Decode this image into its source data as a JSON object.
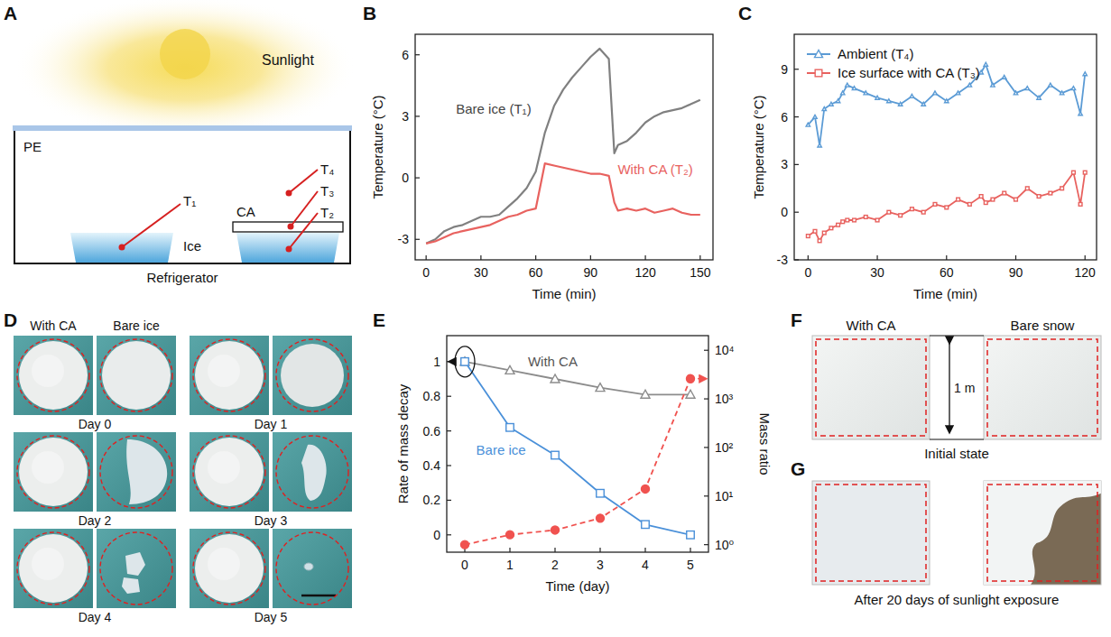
{
  "chart_data": [
    {
      "type": "line",
      "panel_label": "B",
      "x_label": "Time (min)",
      "y_label": "Temperature (°C)",
      "x": [
        0,
        5,
        10,
        15,
        20,
        25,
        30,
        35,
        40,
        45,
        50,
        55,
        60,
        65,
        70,
        75,
        80,
        85,
        90,
        95,
        100,
        103,
        105,
        110,
        115,
        120,
        125,
        130,
        135,
        140,
        145,
        150
      ],
      "xlim": [
        -6,
        157
      ],
      "xticks": [
        0,
        30,
        60,
        90,
        120,
        150
      ],
      "ylim": [
        -4,
        7
      ],
      "yticks": [
        -3,
        0,
        3,
        6
      ],
      "grid": false,
      "series": [
        {
          "name": "Bare ice (T₁)",
          "color": "#808080",
          "values": [
            -3.2,
            -3.0,
            -2.6,
            -2.4,
            -2.3,
            -2.1,
            -1.9,
            -1.9,
            -1.8,
            -1.4,
            -1.0,
            -0.5,
            0.3,
            2.2,
            3.5,
            4.3,
            4.9,
            5.4,
            5.9,
            6.3,
            5.8,
            1.2,
            1.6,
            1.8,
            2.2,
            2.7,
            3.0,
            3.2,
            3.3,
            3.4,
            3.6,
            3.8
          ]
        },
        {
          "name": "With CA (T₂)",
          "color": "#e8625f",
          "values": [
            -3.2,
            -3.1,
            -2.9,
            -2.7,
            -2.6,
            -2.5,
            -2.4,
            -2.3,
            -2.1,
            -1.9,
            -1.8,
            -1.6,
            -1.5,
            0.7,
            0.6,
            0.5,
            0.4,
            0.3,
            0.2,
            0.2,
            0.1,
            -1.2,
            -1.6,
            -1.5,
            -1.6,
            -1.5,
            -1.7,
            -1.6,
            -1.5,
            -1.7,
            -1.8,
            -1.8
          ]
        }
      ]
    },
    {
      "type": "line",
      "panel_label": "C",
      "x_label": "Time (min)",
      "y_label": "Temperature (°C)",
      "x": [
        0,
        3,
        5,
        7,
        10,
        13,
        15,
        17,
        20,
        25,
        30,
        35,
        40,
        45,
        50,
        55,
        60,
        65,
        70,
        75,
        77,
        80,
        85,
        90,
        95,
        100,
        105,
        110,
        115,
        118,
        120
      ],
      "xlim": [
        -6,
        125
      ],
      "xticks": [
        0,
        30,
        60,
        90,
        120
      ],
      "ylim": [
        -3,
        11.2
      ],
      "yticks": [
        -3,
        0,
        3,
        6,
        9
      ],
      "grid": false,
      "legend": "upper left",
      "series": [
        {
          "name": "Ambient (T₄)",
          "color": "#5b9bd5",
          "marker": "triangle",
          "values": [
            5.5,
            6.0,
            4.2,
            6.5,
            6.8,
            7.0,
            7.5,
            8.0,
            7.8,
            7.5,
            7.2,
            7.0,
            6.8,
            7.3,
            6.8,
            7.5,
            7.0,
            7.5,
            8.0,
            8.8,
            9.3,
            8.0,
            8.5,
            7.5,
            7.8,
            7.2,
            8.0,
            7.5,
            7.8,
            6.2,
            8.7
          ]
        },
        {
          "name": "Ice surface with CA (T₃)",
          "color": "#e8625f",
          "marker": "square",
          "values": [
            -1.5,
            -1.2,
            -1.8,
            -1.3,
            -1.0,
            -0.8,
            -0.6,
            -0.5,
            -0.5,
            -0.3,
            -0.5,
            0.0,
            -0.2,
            0.2,
            0.0,
            0.5,
            0.3,
            0.8,
            0.5,
            1.0,
            0.6,
            0.8,
            1.2,
            0.8,
            1.5,
            1.0,
            1.2,
            1.5,
            2.5,
            0.5,
            2.5
          ]
        }
      ]
    },
    {
      "type": "line",
      "panel_label": "E",
      "x_label": "Time (day)",
      "y_label": "Rate of mass decay",
      "y2_label": "Mass ratio",
      "x": [
        0,
        1,
        2,
        3,
        4,
        5
      ],
      "xlim": [
        -0.4,
        5.4
      ],
      "xticks": [
        0,
        1,
        2,
        3,
        4,
        5
      ],
      "ylim": [
        -0.1,
        1.15
      ],
      "yticks": [
        0,
        0.2,
        0.4,
        0.6,
        0.8,
        1
      ],
      "y2lim": [
        0.7,
        20000
      ],
      "y2ticks": [
        {
          "value": 1,
          "label": "10⁰"
        },
        {
          "value": 10,
          "label": "10¹"
        },
        {
          "value": 100,
          "label": "10²"
        },
        {
          "value": 1000,
          "label": "10³"
        },
        {
          "value": 10000,
          "label": "10⁴"
        }
      ],
      "grid": false,
      "series": [
        {
          "name": "With CA",
          "color": "#8c8c8c",
          "marker": "triangle",
          "values": [
            1,
            0.95,
            0.9,
            0.85,
            0.81,
            0.81
          ]
        },
        {
          "name": "Bare ice",
          "color": "#4a90d9",
          "marker": "square",
          "values": [
            1,
            0.62,
            0.46,
            0.24,
            0.06,
            0.0
          ]
        },
        {
          "name": "Mass ratio",
          "color": "#f0524f",
          "marker": "circle",
          "line_style": "dashed",
          "axis": "y2",
          "log": true,
          "values": [
            1,
            1.6,
            2.0,
            3.5,
            14,
            2600
          ]
        }
      ]
    }
  ],
  "diagram": {
    "panel_label": "A",
    "labels": {
      "sunlight": "Sunlight",
      "pe": "PE",
      "t1": "T₁",
      "t4": "T₄",
      "t3": "T₃",
      "t2": "T₂",
      "ca": "CA",
      "ice": "Ice",
      "refrigerator": "Refrigerator"
    }
  },
  "photos_ice": {
    "panel_label": "D",
    "columns": [
      "With CA",
      "Bare ice"
    ],
    "days": [
      "Day 0",
      "Day 1",
      "Day 2",
      "Day 3",
      "Day 4",
      "Day 5"
    ]
  },
  "photos_snow": {
    "panel_label_initial": "F",
    "panel_label_final": "G",
    "columns": [
      "With CA",
      "Bare snow"
    ],
    "size": "1 m",
    "initial_caption": "Initial state",
    "final_caption": "After 20 days of sunlight exposure"
  }
}
